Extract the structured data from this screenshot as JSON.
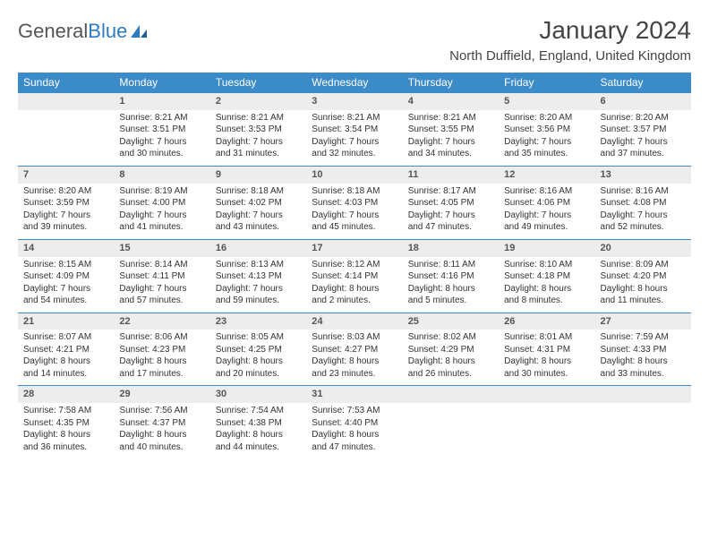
{
  "logo": {
    "text_a": "General",
    "text_b": "Blue"
  },
  "title": "January 2024",
  "location": "North Duffield, England, United Kingdom",
  "colors": {
    "header_bg": "#3b8bc9",
    "header_text": "#ffffff",
    "daynum_bg": "#ededed",
    "row_border": "#3b8bc9",
    "logo_blue": "#2f7bbf",
    "body_text": "#333333"
  },
  "weekdays": [
    "Sunday",
    "Monday",
    "Tuesday",
    "Wednesday",
    "Thursday",
    "Friday",
    "Saturday"
  ],
  "weeks": [
    [
      null,
      {
        "n": "1",
        "sr": "8:21 AM",
        "ss": "3:51 PM",
        "d1": "Daylight: 7 hours",
        "d2": "and 30 minutes."
      },
      {
        "n": "2",
        "sr": "8:21 AM",
        "ss": "3:53 PM",
        "d1": "Daylight: 7 hours",
        "d2": "and 31 minutes."
      },
      {
        "n": "3",
        "sr": "8:21 AM",
        "ss": "3:54 PM",
        "d1": "Daylight: 7 hours",
        "d2": "and 32 minutes."
      },
      {
        "n": "4",
        "sr": "8:21 AM",
        "ss": "3:55 PM",
        "d1": "Daylight: 7 hours",
        "d2": "and 34 minutes."
      },
      {
        "n": "5",
        "sr": "8:20 AM",
        "ss": "3:56 PM",
        "d1": "Daylight: 7 hours",
        "d2": "and 35 minutes."
      },
      {
        "n": "6",
        "sr": "8:20 AM",
        "ss": "3:57 PM",
        "d1": "Daylight: 7 hours",
        "d2": "and 37 minutes."
      }
    ],
    [
      {
        "n": "7",
        "sr": "8:20 AM",
        "ss": "3:59 PM",
        "d1": "Daylight: 7 hours",
        "d2": "and 39 minutes."
      },
      {
        "n": "8",
        "sr": "8:19 AM",
        "ss": "4:00 PM",
        "d1": "Daylight: 7 hours",
        "d2": "and 41 minutes."
      },
      {
        "n": "9",
        "sr": "8:18 AM",
        "ss": "4:02 PM",
        "d1": "Daylight: 7 hours",
        "d2": "and 43 minutes."
      },
      {
        "n": "10",
        "sr": "8:18 AM",
        "ss": "4:03 PM",
        "d1": "Daylight: 7 hours",
        "d2": "and 45 minutes."
      },
      {
        "n": "11",
        "sr": "8:17 AM",
        "ss": "4:05 PM",
        "d1": "Daylight: 7 hours",
        "d2": "and 47 minutes."
      },
      {
        "n": "12",
        "sr": "8:16 AM",
        "ss": "4:06 PM",
        "d1": "Daylight: 7 hours",
        "d2": "and 49 minutes."
      },
      {
        "n": "13",
        "sr": "8:16 AM",
        "ss": "4:08 PM",
        "d1": "Daylight: 7 hours",
        "d2": "and 52 minutes."
      }
    ],
    [
      {
        "n": "14",
        "sr": "8:15 AM",
        "ss": "4:09 PM",
        "d1": "Daylight: 7 hours",
        "d2": "and 54 minutes."
      },
      {
        "n": "15",
        "sr": "8:14 AM",
        "ss": "4:11 PM",
        "d1": "Daylight: 7 hours",
        "d2": "and 57 minutes."
      },
      {
        "n": "16",
        "sr": "8:13 AM",
        "ss": "4:13 PM",
        "d1": "Daylight: 7 hours",
        "d2": "and 59 minutes."
      },
      {
        "n": "17",
        "sr": "8:12 AM",
        "ss": "4:14 PM",
        "d1": "Daylight: 8 hours",
        "d2": "and 2 minutes."
      },
      {
        "n": "18",
        "sr": "8:11 AM",
        "ss": "4:16 PM",
        "d1": "Daylight: 8 hours",
        "d2": "and 5 minutes."
      },
      {
        "n": "19",
        "sr": "8:10 AM",
        "ss": "4:18 PM",
        "d1": "Daylight: 8 hours",
        "d2": "and 8 minutes."
      },
      {
        "n": "20",
        "sr": "8:09 AM",
        "ss": "4:20 PM",
        "d1": "Daylight: 8 hours",
        "d2": "and 11 minutes."
      }
    ],
    [
      {
        "n": "21",
        "sr": "8:07 AM",
        "ss": "4:21 PM",
        "d1": "Daylight: 8 hours",
        "d2": "and 14 minutes."
      },
      {
        "n": "22",
        "sr": "8:06 AM",
        "ss": "4:23 PM",
        "d1": "Daylight: 8 hours",
        "d2": "and 17 minutes."
      },
      {
        "n": "23",
        "sr": "8:05 AM",
        "ss": "4:25 PM",
        "d1": "Daylight: 8 hours",
        "d2": "and 20 minutes."
      },
      {
        "n": "24",
        "sr": "8:03 AM",
        "ss": "4:27 PM",
        "d1": "Daylight: 8 hours",
        "d2": "and 23 minutes."
      },
      {
        "n": "25",
        "sr": "8:02 AM",
        "ss": "4:29 PM",
        "d1": "Daylight: 8 hours",
        "d2": "and 26 minutes."
      },
      {
        "n": "26",
        "sr": "8:01 AM",
        "ss": "4:31 PM",
        "d1": "Daylight: 8 hours",
        "d2": "and 30 minutes."
      },
      {
        "n": "27",
        "sr": "7:59 AM",
        "ss": "4:33 PM",
        "d1": "Daylight: 8 hours",
        "d2": "and 33 minutes."
      }
    ],
    [
      {
        "n": "28",
        "sr": "7:58 AM",
        "ss": "4:35 PM",
        "d1": "Daylight: 8 hours",
        "d2": "and 36 minutes."
      },
      {
        "n": "29",
        "sr": "7:56 AM",
        "ss": "4:37 PM",
        "d1": "Daylight: 8 hours",
        "d2": "and 40 minutes."
      },
      {
        "n": "30",
        "sr": "7:54 AM",
        "ss": "4:38 PM",
        "d1": "Daylight: 8 hours",
        "d2": "and 44 minutes."
      },
      {
        "n": "31",
        "sr": "7:53 AM",
        "ss": "4:40 PM",
        "d1": "Daylight: 8 hours",
        "d2": "and 47 minutes."
      },
      null,
      null,
      null
    ]
  ]
}
